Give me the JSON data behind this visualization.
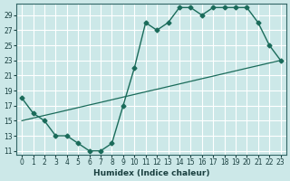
{
  "xlabel": "Humidex (Indice chaleur)",
  "bg_color": "#cce8e8",
  "grid_color": "#d4e8e8",
  "line_color": "#1a6b5a",
  "xlim": [
    -0.5,
    23.5
  ],
  "ylim": [
    10.5,
    30.5
  ],
  "xticks": [
    0,
    1,
    2,
    3,
    4,
    5,
    6,
    7,
    8,
    9,
    10,
    11,
    12,
    13,
    14,
    15,
    16,
    17,
    18,
    19,
    20,
    21,
    22,
    23
  ],
  "yticks": [
    11,
    13,
    15,
    17,
    19,
    21,
    23,
    25,
    27,
    29
  ],
  "curve_x": [
    0,
    1,
    2,
    3,
    4,
    5,
    6,
    7,
    8,
    9,
    10,
    11,
    12,
    13,
    14,
    15,
    16,
    17,
    18,
    19,
    20,
    21,
    22,
    23
  ],
  "curve_y": [
    18,
    16,
    15,
    13,
    13,
    12,
    11,
    11,
    12,
    17,
    22,
    28,
    27,
    28,
    30,
    30,
    29,
    30,
    30,
    30,
    30,
    28,
    25,
    23
  ],
  "diag_x": [
    0,
    1,
    2,
    3,
    4,
    5,
    6,
    7,
    8,
    9,
    10,
    11,
    12,
    13,
    14,
    15,
    16,
    17,
    18,
    19,
    20,
    21,
    22,
    23
  ],
  "diag_y": [
    15,
    15.35,
    15.7,
    16.04,
    16.39,
    16.74,
    17.09,
    17.43,
    17.78,
    18.13,
    18.48,
    18.83,
    19.17,
    19.52,
    19.87,
    20.22,
    20.57,
    20.91,
    21.26,
    21.61,
    21.96,
    22.3,
    22.65,
    23
  ]
}
